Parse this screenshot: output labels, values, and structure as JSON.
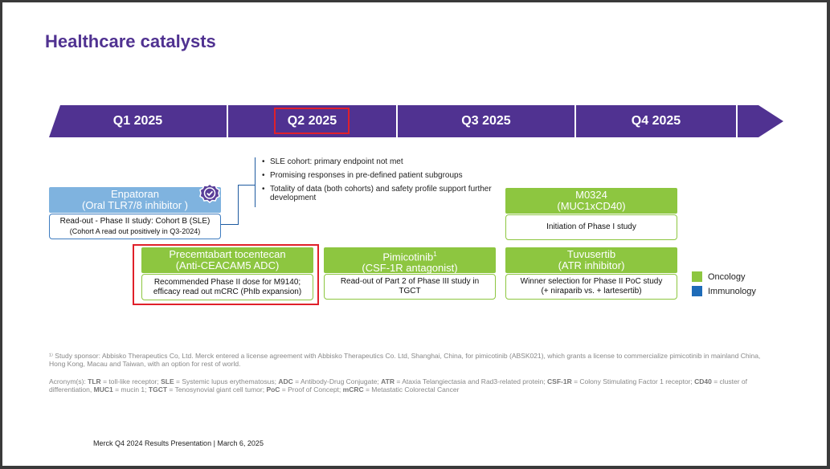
{
  "title": "Healthcare catalysts",
  "timeline": {
    "quarters": [
      "Q1 2025",
      "Q2 2025",
      "Q3 2025",
      "Q4 2025"
    ],
    "highlighted": "Q2 2025"
  },
  "bullets": [
    "SLE cohort: primary endpoint not met",
    "Promising responses in pre-defined patient subgroups",
    "Totality of data (both cohorts) and safety profile support further development"
  ],
  "cards": {
    "enpatoran": {
      "name": "Enpatoran",
      "moa": "(Oral TLR7/8 inhibitor )",
      "line1": "Read-out - Phase II study: Cohort B (SLE)",
      "line2": "(Cohort A read out positively in Q3-2024)",
      "category": "Immunology"
    },
    "m0324": {
      "name": "M0324",
      "moa": "(MUC1xCD40)",
      "line1": "Initiation of Phase I study",
      "category": "Oncology"
    },
    "precemtabart": {
      "name": "Precemtabart tocentecan",
      "moa": "(Anti-CEACAM5 ADC)",
      "line1": "Recommended Phase II dose for M9140;",
      "line2": "efficacy read out mCRC (PhIb expansion)",
      "category": "Oncology"
    },
    "pimicotinib": {
      "name": "Pimicotinib",
      "superscript": "1",
      "moa": "(CSF-1R antagonist)",
      "line1": "Read-out of Part 2 of Phase III study in",
      "line2": "TGCT",
      "category": "Oncology"
    },
    "tuvusertib": {
      "name": "Tuvusertib",
      "moa": "(ATR inhibitor)",
      "line1": "Winner selection for Phase II PoC study",
      "line2": "(+ niraparib vs. + lartesertib)",
      "category": "Oncology"
    }
  },
  "legend": [
    {
      "label": "Oncology",
      "color": "#8dc640"
    },
    {
      "label": "Immunology",
      "color": "#1e6bb8"
    }
  ],
  "footnote": "¹⁾ Study sponsor: Abbisko Therapeutics Co, Ltd. Merck entered a license agreement with Abbisko Therapeutics Co. Ltd, Shanghai, China, for pimicotinib (ABSK021), which grants a license to commercialize pimicotinib in mainland China, Hong Kong, Macau and Taiwan, with an option for rest of world.",
  "acronyms": {
    "prefix": "Acronym(s): ",
    "items": [
      {
        "abbr": "TLR",
        "def": " = toll-like receptor; "
      },
      {
        "abbr": "SLE",
        "def": " = Systemic lupus erythematosus; "
      },
      {
        "abbr": "ADC",
        "def": " = Antibody-Drug Conjugate; "
      },
      {
        "abbr": "ATR",
        "def": " = Ataxia Telangiectasia and Rad3-related protein; "
      },
      {
        "abbr": "CSF-1R",
        "def": " = Colony Stimulating Factor 1 receptor; "
      },
      {
        "abbr": "CD40",
        "def": " = cluster of differentiation, "
      },
      {
        "abbr": "MUC1",
        "def": " = mucin 1; "
      },
      {
        "abbr": "TGCT",
        "def": " = Tenosynovial giant cell tumor; "
      },
      {
        "abbr": "PoC",
        "def": " = Proof of Concept; "
      },
      {
        "abbr": "mCRC",
        "def": " = Metastatic Colorectal Cancer"
      }
    ]
  },
  "footer": "Merck Q4 2024 Results Presentation | March 6, 2025",
  "colors": {
    "brand_purple": "#503291",
    "highlight_red": "#e0202a",
    "immunology_blue": "#7fb3df",
    "oncology_green": "#8dc640"
  }
}
